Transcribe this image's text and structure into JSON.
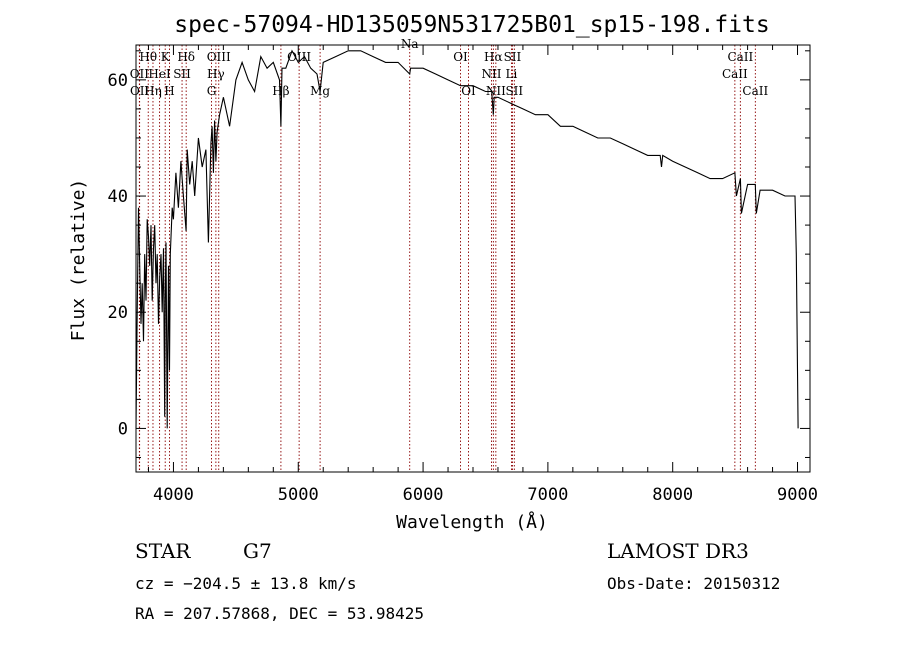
{
  "chart_data": {
    "type": "line",
    "title": "spec-57094-HD135059N531725B01_sp15-198.fits",
    "xlabel": "Wavelength (Å)",
    "ylabel": "Flux (relative)",
    "xlim": [
      3700,
      9100
    ],
    "ylim": [
      -7.5,
      66
    ],
    "x_ticks": [
      {
        "value": 4000,
        "label": "4000"
      },
      {
        "value": 5000,
        "label": "5000"
      },
      {
        "value": 6000,
        "label": "6000"
      },
      {
        "value": 7000,
        "label": "7000"
      },
      {
        "value": 8000,
        "label": "8000"
      },
      {
        "value": 9000,
        "label": "9000"
      }
    ],
    "y_ticks": [
      {
        "value": 0,
        "label": "0"
      },
      {
        "value": 20,
        "label": "20"
      },
      {
        "value": 40,
        "label": "40"
      },
      {
        "value": 60,
        "label": "60"
      }
    ],
    "grid": false,
    "line_color": "#8b0000",
    "spectrum_color": "#000000",
    "spectrum": {
      "x": [
        3700,
        3710,
        3720,
        3730,
        3740,
        3750,
        3760,
        3770,
        3780,
        3790,
        3800,
        3810,
        3820,
        3830,
        3840,
        3850,
        3860,
        3870,
        3880,
        3890,
        3900,
        3910,
        3920,
        3930,
        3934,
        3940,
        3950,
        3960,
        3968,
        3975,
        3990,
        4000,
        4020,
        4040,
        4060,
        4080,
        4101,
        4110,
        4130,
        4150,
        4170,
        4200,
        4230,
        4260,
        4280,
        4300,
        4310,
        4320,
        4330,
        4340,
        4350,
        4370,
        4400,
        4450,
        4500,
        4550,
        4600,
        4650,
        4700,
        4750,
        4800,
        4850,
        4861,
        4870,
        4900,
        4950,
        5000,
        5050,
        5100,
        5150,
        5175,
        5200,
        5300,
        5400,
        5500,
        5600,
        5700,
        5800,
        5893,
        5900,
        6000,
        6100,
        6200,
        6300,
        6400,
        6500,
        6550,
        6563,
        6570,
        6600,
        6700,
        6800,
        6900,
        7000,
        7100,
        7200,
        7300,
        7400,
        7500,
        7600,
        7700,
        7800,
        7900,
        7910,
        7920,
        8000,
        8100,
        8200,
        8300,
        8400,
        8498,
        8510,
        8542,
        8550,
        8600,
        8662,
        8670,
        8700,
        8800,
        8900,
        8950,
        8980,
        8990,
        9000,
        9005
      ],
      "y": [
        0,
        20,
        38,
        28,
        18,
        25,
        15,
        30,
        22,
        36,
        33,
        28,
        35,
        22,
        31,
        35,
        25,
        30,
        18,
        26,
        30,
        20,
        31,
        2,
        22,
        32,
        0,
        28,
        10,
        30,
        38,
        36,
        44,
        38,
        46,
        40,
        34,
        48,
        42,
        46,
        40,
        50,
        45,
        48,
        32,
        49,
        52,
        44,
        53,
        46,
        51,
        54,
        57,
        52,
        60,
        63,
        60,
        58,
        64,
        62,
        63,
        60,
        52,
        62,
        62,
        65,
        63,
        64,
        62,
        61,
        58,
        63,
        64,
        65,
        65,
        64,
        63,
        63,
        61,
        62,
        62,
        61,
        60,
        59,
        59,
        58,
        58,
        54,
        57,
        57,
        56,
        55,
        54,
        54,
        52,
        52,
        51,
        50,
        50,
        49,
        48,
        47,
        47,
        45,
        47,
        46,
        45,
        44,
        43,
        43,
        44,
        40,
        43,
        37,
        42,
        42,
        37,
        41,
        41,
        40,
        40,
        40,
        30,
        10,
        0
      ]
    },
    "annotations": [
      {
        "label": "OII",
        "x": 3727,
        "row": 2
      },
      {
        "label": "OII",
        "x": 3729,
        "row": 3
      },
      {
        "label": "Hθ",
        "x": 3798,
        "row": 1
      },
      {
        "label": "Hη",
        "x": 3836,
        "row": 3
      },
      {
        "label": "HeI",
        "x": 3889,
        "row": 2
      },
      {
        "label": "K",
        "x": 3934,
        "row": 1
      },
      {
        "label": "H",
        "x": 3968,
        "row": 3
      },
      {
        "label": "SII",
        "x": 4069,
        "row": 2
      },
      {
        "label": "Hδ",
        "x": 4102,
        "row": 1
      },
      {
        "label": "OIII",
        "x": 4363,
        "row": 1
      },
      {
        "label": "Hγ",
        "x": 4340,
        "row": 2
      },
      {
        "label": "G",
        "x": 4305,
        "row": 3
      },
      {
        "label": "Hβ",
        "x": 4861,
        "row": 3
      },
      {
        "label": "OIII",
        "x": 5007,
        "row": 1
      },
      {
        "label": "Mg",
        "x": 5175,
        "row": 3
      },
      {
        "label": "Na",
        "x": 5893,
        "row": 0
      },
      {
        "label": "OI",
        "x": 6300,
        "row": 1
      },
      {
        "label": "OI",
        "x": 6364,
        "row": 3
      },
      {
        "label": "Hα",
        "x": 6563,
        "row": 1
      },
      {
        "label": "NII",
        "x": 6548,
        "row": 2
      },
      {
        "label": "NII",
        "x": 6583,
        "row": 3
      },
      {
        "label": "SII",
        "x": 6716,
        "row": 1
      },
      {
        "label": "Li",
        "x": 6708,
        "row": 2
      },
      {
        "label": "SII",
        "x": 6731,
        "row": 3
      },
      {
        "label": "CaII",
        "x": 8498,
        "row": 2
      },
      {
        "label": "CaII",
        "x": 8542,
        "row": 1
      },
      {
        "label": "CaII",
        "x": 8662,
        "row": 3
      }
    ]
  },
  "info": {
    "object_class": "STAR",
    "subclass": "G7",
    "survey": "LAMOST DR3",
    "cz": "cz = −204.5 ± 13.8 km/s",
    "obs_date": "Obs-Date: 20150312",
    "radec": "RA = 207.57868, DEC =  53.98425"
  }
}
